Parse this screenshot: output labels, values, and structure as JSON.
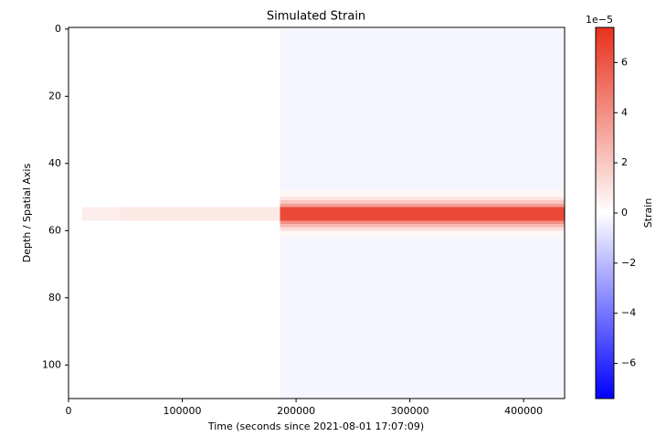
{
  "chart_data": {
    "type": "heatmap",
    "title": "Simulated Strain",
    "xlabel": "Time (seconds since 2021-08-01 17:07:09)",
    "ylabel": "Depth / Spatial Axis",
    "x_edges": [
      0,
      12000,
      45000,
      186000,
      436000
    ],
    "y_edges": [
      0,
      48,
      50,
      51,
      52,
      53,
      57,
      58,
      59,
      60,
      62,
      110
    ],
    "z": [
      [
        0,
        0,
        0,
        -3e-06
      ],
      [
        0,
        0,
        0,
        3e-06
      ],
      [
        0,
        0,
        0,
        1e-05
      ],
      [
        0,
        0,
        0,
        2e-05
      ],
      [
        0,
        0,
        0,
        3.5e-05
      ],
      [
        0,
        6e-06,
        8e-06,
        6.5e-05
      ],
      [
        0,
        0,
        0,
        4e-05
      ],
      [
        0,
        0,
        0,
        2.5e-05
      ],
      [
        0,
        0,
        0,
        1.2e-05
      ],
      [
        0,
        0,
        0,
        3e-06
      ],
      [
        0,
        0,
        0,
        -3e-06
      ]
    ],
    "xlim": [
      0,
      436000
    ],
    "xticks": [
      0,
      100000,
      200000,
      300000,
      400000
    ],
    "ylim": [
      110,
      -0.5
    ],
    "yticks": [
      0,
      20,
      40,
      60,
      80,
      100
    ],
    "colormap": [
      "#0000ff",
      "#ffffff",
      "#e8301c"
    ],
    "vlim": [
      -7.4e-05,
      7.4e-05
    ],
    "colorbar_ticks": [
      {
        "value": -6e-05,
        "label": "−6"
      },
      {
        "value": -4e-05,
        "label": "−4"
      },
      {
        "value": -2e-05,
        "label": "−2"
      },
      {
        "value": 0,
        "label": "0"
      },
      {
        "value": 2e-05,
        "label": "2"
      },
      {
        "value": 4e-05,
        "label": "4"
      },
      {
        "value": 6e-05,
        "label": "6"
      }
    ],
    "colorbar_offset": "1e−5",
    "colorbar_label": "Strain"
  }
}
